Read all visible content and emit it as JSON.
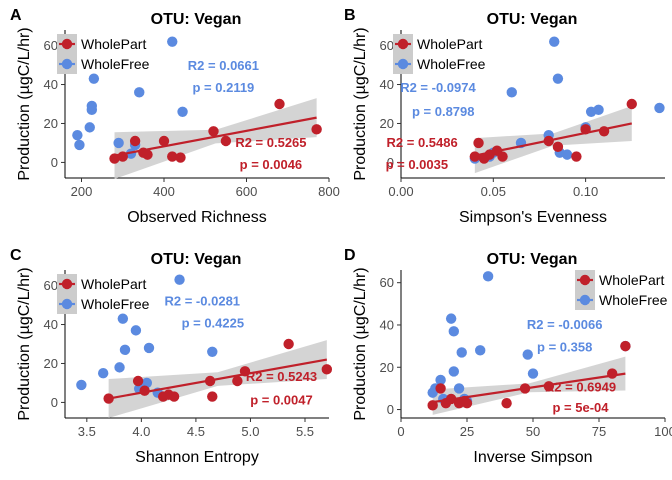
{
  "colors": {
    "part": "#c0202a",
    "free": "#5b8ae0",
    "band": "#cccccc"
  },
  "chart_data": [
    {
      "type": "scatter",
      "panel_letter": "A",
      "title": "OTU: Vegan",
      "xlabel": "Observed Richness",
      "ylabel": "Production (µgC/L/hr)",
      "xlim": [
        160,
        800
      ],
      "ylim": [
        -8,
        68
      ],
      "xticks": [
        200,
        400,
        600,
        800
      ],
      "yticks": [
        0,
        20,
        40,
        60
      ],
      "legend": {
        "placement": "top-left",
        "entries": [
          "WholePart",
          "WholeFree"
        ]
      },
      "series": [
        {
          "name": "WholePart",
          "points": [
            [
              280,
              2
            ],
            [
              300,
              3
            ],
            [
              330,
              11
            ],
            [
              350,
              5
            ],
            [
              360,
              4
            ],
            [
              400,
              11
            ],
            [
              420,
              3
            ],
            [
              440,
              2.5
            ],
            [
              520,
              16
            ],
            [
              550,
              11
            ],
            [
              680,
              30
            ],
            [
              770,
              17
            ]
          ],
          "fit": {
            "x": [
              280,
              770
            ],
            "y": [
              3.5,
              23
            ],
            "band": [
              12,
              10
            ]
          },
          "stats": [
            "R2 = 0.5265",
            "p = 0.0046"
          ]
        },
        {
          "name": "WholeFree",
          "points": [
            [
              190,
              14
            ],
            [
              195,
              9
            ],
            [
              220,
              18
            ],
            [
              225,
              27
            ],
            [
              225,
              29
            ],
            [
              230,
              43
            ],
            [
              290,
              10
            ],
            [
              320,
              4.5
            ],
            [
              330,
              9
            ],
            [
              340,
              36
            ],
            [
              420,
              62
            ],
            [
              445,
              26
            ]
          ],
          "stats": [
            "R2 = 0.0661",
            "p = 0.2119"
          ]
        }
      ]
    },
    {
      "type": "scatter",
      "panel_letter": "B",
      "title": "OTU: Vegan",
      "xlabel": "Simpson's Evenness",
      "ylabel": "Production (µgC/L/hr)",
      "xlim": [
        0,
        0.143
      ],
      "ylim": [
        -8,
        68
      ],
      "xticks": [
        0.0,
        0.05,
        0.1
      ],
      "xtick_labels": [
        "0.00",
        "0.05",
        "0.10"
      ],
      "yticks": [
        0,
        20,
        40,
        60
      ],
      "legend": {
        "placement": "top-left",
        "entries": [
          "WholePart",
          "WholeFree"
        ]
      },
      "series": [
        {
          "name": "WholePart",
          "points": [
            [
              0.04,
              3
            ],
            [
              0.042,
              10
            ],
            [
              0.045,
              2
            ],
            [
              0.048,
              4
            ],
            [
              0.052,
              6
            ],
            [
              0.055,
              3
            ],
            [
              0.08,
              11
            ],
            [
              0.085,
              8
            ],
            [
              0.095,
              3
            ],
            [
              0.1,
              17
            ],
            [
              0.11,
              16
            ],
            [
              0.125,
              30
            ]
          ],
          "fit": {
            "x": [
              0.04,
              0.125
            ],
            "y": [
              3.5,
              20
            ],
            "band": [
              9,
              9
            ]
          },
          "stats": [
            "R2 = 0.5486",
            "p = 0.0035"
          ]
        },
        {
          "name": "WholeFree",
          "points": [
            [
              0.04,
              2
            ],
            [
              0.048,
              3
            ],
            [
              0.05,
              5
            ],
            [
              0.06,
              36
            ],
            [
              0.065,
              10
            ],
            [
              0.08,
              14
            ],
            [
              0.083,
              62
            ],
            [
              0.085,
              43
            ],
            [
              0.086,
              5
            ],
            [
              0.09,
              4
            ],
            [
              0.1,
              18
            ],
            [
              0.103,
              26
            ],
            [
              0.107,
              27
            ],
            [
              0.14,
              28
            ]
          ],
          "stats": [
            "R2 = -0.0974",
            "p = 0.8798"
          ]
        }
      ]
    },
    {
      "type": "scatter",
      "panel_letter": "C",
      "title": "OTU: Vegan",
      "xlabel": "Shannon Entropy",
      "ylabel": "Production (µgC/L/hr)",
      "xlim": [
        3.3,
        5.72
      ],
      "ylim": [
        -8,
        68
      ],
      "xticks": [
        3.5,
        4.0,
        4.5,
        5.0,
        5.5
      ],
      "xtick_labels": [
        "3.5",
        "4.0",
        "4.5",
        "5.0",
        "5.5"
      ],
      "yticks": [
        0,
        20,
        40,
        60
      ],
      "legend": {
        "placement": "top-left",
        "entries": [
          "WholePart",
          "WholeFree"
        ]
      },
      "series": [
        {
          "name": "WholePart",
          "points": [
            [
              3.7,
              2
            ],
            [
              3.97,
              11
            ],
            [
              4.03,
              6
            ],
            [
              4.2,
              3
            ],
            [
              4.25,
              4
            ],
            [
              4.3,
              3
            ],
            [
              4.63,
              11
            ],
            [
              4.65,
              3
            ],
            [
              4.88,
              11
            ],
            [
              4.95,
              16
            ],
            [
              5.35,
              30
            ],
            [
              5.7,
              17
            ]
          ],
          "fit": {
            "x": [
              3.7,
              5.7
            ],
            "y": [
              2,
              22
            ],
            "band": [
              10,
              10
            ]
          },
          "stats": [
            "R2 = 0.5243",
            "p = 0.0047"
          ]
        },
        {
          "name": "WholeFree",
          "points": [
            [
              3.45,
              9
            ],
            [
              3.65,
              15
            ],
            [
              3.8,
              18
            ],
            [
              3.83,
              43
            ],
            [
              3.85,
              27
            ],
            [
              3.95,
              37
            ],
            [
              3.98,
              7
            ],
            [
              4.05,
              10
            ],
            [
              4.07,
              28
            ],
            [
              4.15,
              5
            ],
            [
              4.35,
              63
            ],
            [
              4.65,
              26
            ]
          ],
          "stats": [
            "R2 = -0.0281",
            "p = 0.4225"
          ]
        }
      ]
    },
    {
      "type": "scatter",
      "panel_letter": "D",
      "title": "OTU: Vegan",
      "xlabel": "Inverse Simpson",
      "ylabel": "Production (µgC/L/hr)",
      "xlim": [
        0,
        100
      ],
      "ylim": [
        -4,
        66
      ],
      "xticks": [
        0,
        25,
        50,
        75,
        100
      ],
      "yticks": [
        0,
        20,
        40,
        60
      ],
      "legend": {
        "placement": "top-right",
        "entries": [
          "WholePart",
          "WholeFree"
        ]
      },
      "series": [
        {
          "name": "WholePart",
          "points": [
            [
              12,
              2
            ],
            [
              15,
              10
            ],
            [
              17,
              3
            ],
            [
              19,
              5
            ],
            [
              22,
              3
            ],
            [
              24,
              4
            ],
            [
              25,
              3
            ],
            [
              40,
              3
            ],
            [
              47,
              10
            ],
            [
              56,
              11
            ],
            [
              80,
              17
            ],
            [
              85,
              30
            ]
          ],
          "fit": {
            "x": [
              12,
              85
            ],
            "y": [
              3.5,
              17
            ],
            "band": [
              6,
              8
            ]
          },
          "stats": [
            "R2 = 0.6949",
            "p = 5e-04"
          ]
        },
        {
          "name": "WholeFree",
          "points": [
            [
              12,
              8
            ],
            [
              13,
              10
            ],
            [
              15,
              14
            ],
            [
              16,
              5
            ],
            [
              19,
              43
            ],
            [
              20,
              37
            ],
            [
              20,
              18
            ],
            [
              22,
              10
            ],
            [
              23,
              27
            ],
            [
              24,
              5
            ],
            [
              25,
              4
            ],
            [
              30,
              28
            ],
            [
              33,
              63
            ],
            [
              48,
              26
            ],
            [
              50,
              17
            ],
            [
              85,
              30
            ]
          ],
          "stats": [
            "R2 = -0.0066",
            "p = 0.358"
          ]
        }
      ]
    }
  ]
}
